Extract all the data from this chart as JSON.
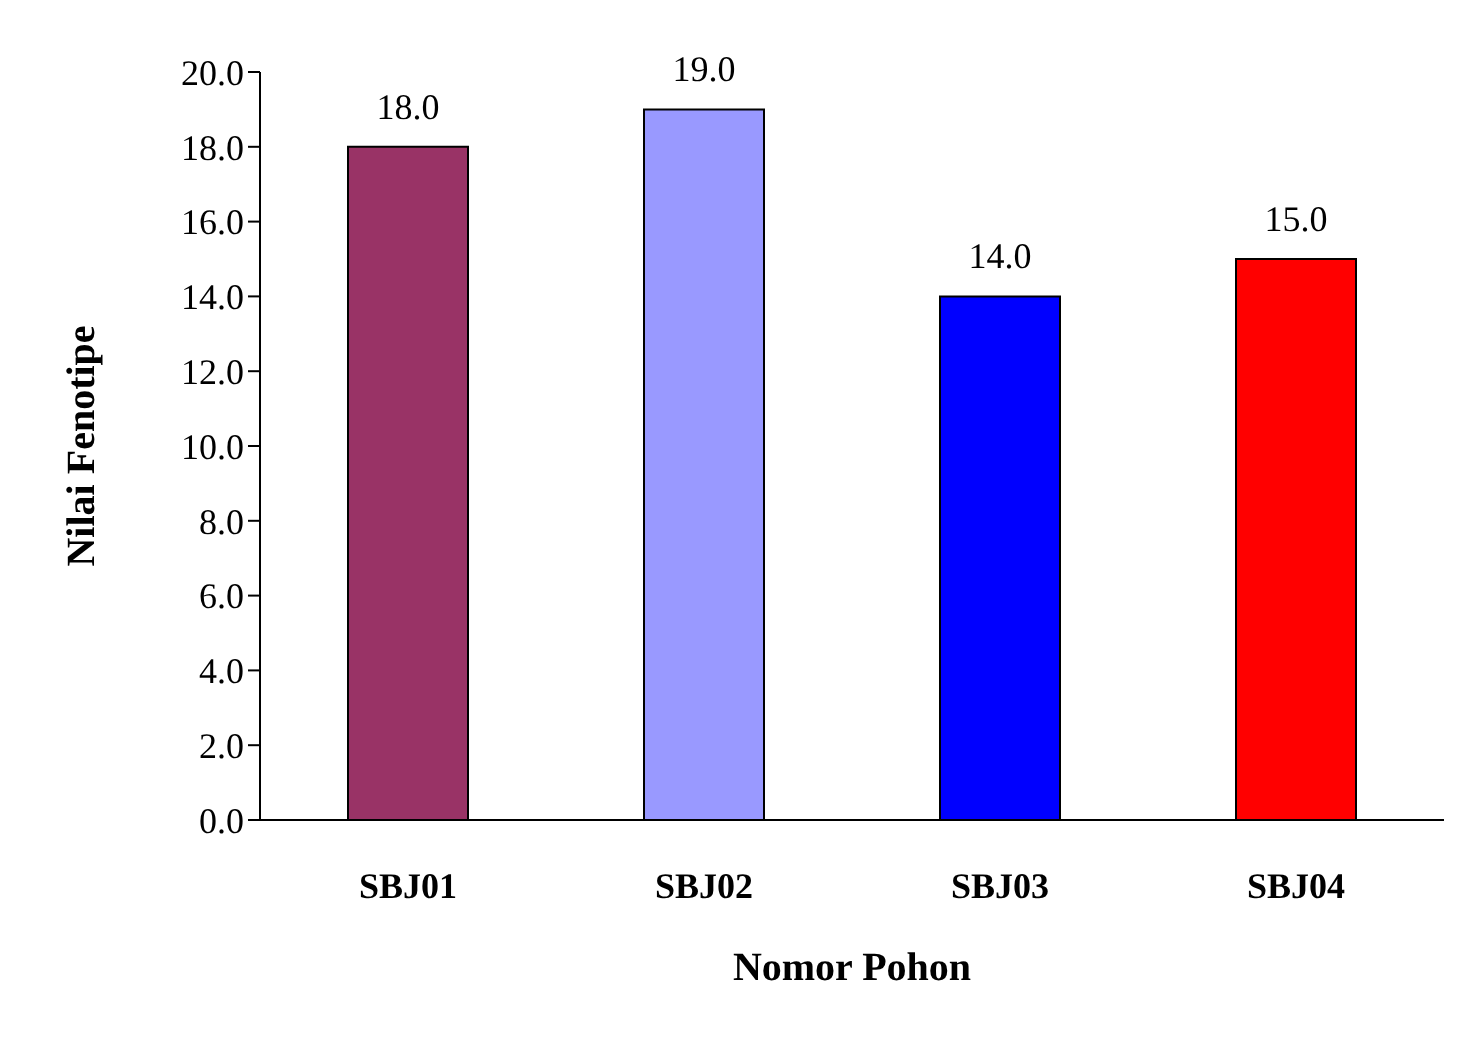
{
  "chart_data": {
    "type": "bar",
    "xlabel": "Nomor Pohon",
    "ylabel": "Nilai Fenotipe",
    "categories": [
      "SBJ01",
      "SBJ02",
      "SBJ03",
      "SBJ04"
    ],
    "values": [
      18.0,
      19.0,
      14.0,
      15.0
    ],
    "colors": [
      "#993366",
      "#9999ff",
      "#0000ff",
      "#ff0000"
    ],
    "ylim": [
      0,
      20
    ],
    "yticks": [
      {
        "value": 0,
        "label": "0.0"
      },
      {
        "value": 2,
        "label": "2.0"
      },
      {
        "value": 4,
        "label": "4.0"
      },
      {
        "value": 6,
        "label": "6.0"
      },
      {
        "value": 8,
        "label": "8.0"
      },
      {
        "value": 10,
        "label": "10.0"
      },
      {
        "value": 12,
        "label": "12.0"
      },
      {
        "value": 14,
        "label": "14.0"
      },
      {
        "value": 16,
        "label": "16.0"
      },
      {
        "value": 18,
        "label": "18.0"
      },
      {
        "value": 20,
        "label": "20.0"
      }
    ],
    "value_labels": [
      "18.0",
      "19.0",
      "14.0",
      "15.0"
    ],
    "grid": false,
    "legend": false
  }
}
